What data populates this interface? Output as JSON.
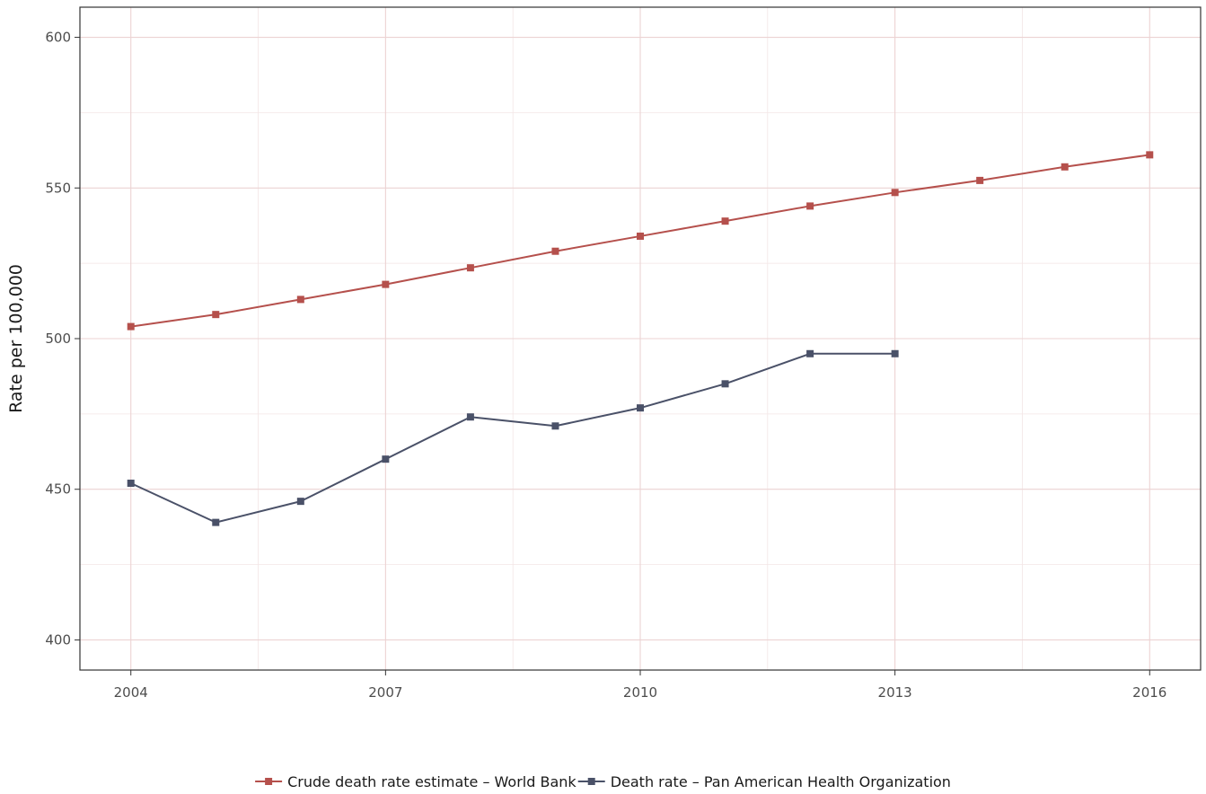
{
  "chart_data": {
    "type": "line",
    "title": "",
    "xlabel": "",
    "ylabel": "Rate per 100,000",
    "xlim": [
      2003.4,
      2016.6
    ],
    "ylim": [
      390,
      610
    ],
    "x_ticks": [
      2004,
      2007,
      2010,
      2013,
      2016
    ],
    "y_ticks": [
      400,
      450,
      500,
      550,
      600
    ],
    "grid": true,
    "legend_position": "bottom",
    "series": [
      {
        "name": "Crude death rate estimate – World Bank",
        "color": "#b5504c",
        "marker": "square",
        "x": [
          2004,
          2005,
          2006,
          2007,
          2008,
          2009,
          2010,
          2011,
          2012,
          2013,
          2014,
          2015,
          2016
        ],
        "y": [
          504,
          508,
          513,
          518,
          523.5,
          529,
          534,
          539,
          544,
          548.5,
          552.5,
          557,
          561
        ]
      },
      {
        "name": "Death rate – Pan American Health Organization",
        "color": "#4a5168",
        "marker": "square",
        "x": [
          2004,
          2005,
          2006,
          2007,
          2008,
          2009,
          2010,
          2011,
          2012,
          2013
        ],
        "y": [
          452,
          439,
          446,
          460,
          474,
          471,
          477,
          485,
          495,
          495
        ]
      }
    ]
  }
}
